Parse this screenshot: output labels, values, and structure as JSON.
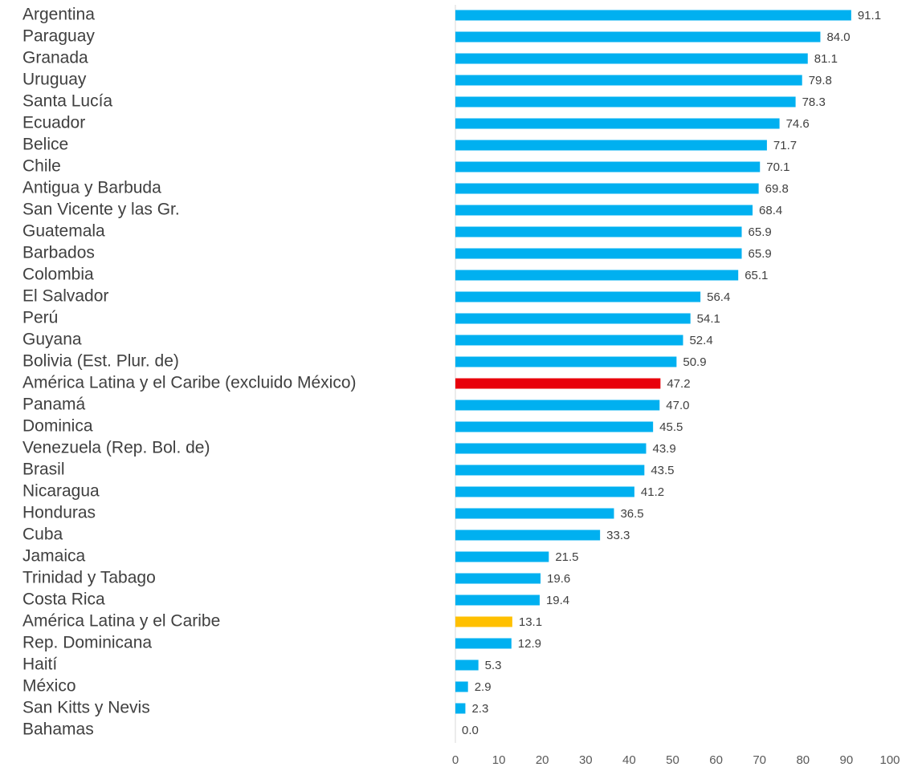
{
  "chart_data": {
    "type": "barh",
    "categories": [
      "Argentina",
      "Paraguay",
      "Granada",
      "Uruguay",
      "Santa Lucía",
      "Ecuador",
      "Belice",
      "Chile",
      "Antigua y Barbuda",
      "San Vicente y las Gr.",
      "Guatemala",
      "Barbados",
      "Colombia",
      "El Salvador",
      "Perú",
      "Guyana",
      "Bolivia (Est. Plur. de)",
      "América Latina y el Caribe (excluido México)",
      "Panamá",
      "Dominica",
      "Venezuela (Rep. Bol. de)",
      "Brasil",
      "Nicaragua",
      "Honduras",
      "Cuba",
      "Jamaica",
      "Trinidad y Tabago",
      "Costa Rica",
      "América Latina y el Caribe",
      "Rep. Dominicana",
      "Haití",
      "México",
      "San Kitts y Nevis",
      "Bahamas"
    ],
    "values": [
      91.1,
      84,
      81.1,
      79.8,
      78.3,
      74.6,
      71.7,
      70.1,
      69.8,
      68.4,
      65.9,
      65.9,
      65.1,
      56.4,
      54.1,
      52.4,
      50.9,
      47.2,
      47,
      45.5,
      43.9,
      43.5,
      41.2,
      36.5,
      33.3,
      21.5,
      19.6,
      19.4,
      13.1,
      12.9,
      5.3,
      2.9,
      2.3,
      0
    ],
    "value_labels": [
      "91.1",
      "84.0",
      "81.1",
      "79.8",
      "78.3",
      "74.6",
      "71.7",
      "70.1",
      "69.8",
      "68.4",
      "65.9",
      "65.9",
      "65.1",
      "56.4",
      "54.1",
      "52.4",
      "50.9",
      "47.2",
      "47.0",
      "45.5",
      "43.9",
      "43.5",
      "41.2",
      "36.5",
      "33.3",
      "21.5",
      "19.6",
      "19.4",
      "13.1",
      "12.9",
      "5.3",
      "2.9",
      "2.3",
      "0.0"
    ],
    "colors": [
      "#00b0f0",
      "#00b0f0",
      "#00b0f0",
      "#00b0f0",
      "#00b0f0",
      "#00b0f0",
      "#00b0f0",
      "#00b0f0",
      "#00b0f0",
      "#00b0f0",
      "#00b0f0",
      "#00b0f0",
      "#00b0f0",
      "#00b0f0",
      "#00b0f0",
      "#00b0f0",
      "#00b0f0",
      "#e8000b",
      "#00b0f0",
      "#00b0f0",
      "#00b0f0",
      "#00b0f0",
      "#00b0f0",
      "#00b0f0",
      "#00b0f0",
      "#00b0f0",
      "#00b0f0",
      "#00b0f0",
      "#ffc000",
      "#00b0f0",
      "#00b0f0",
      "#00b0f0",
      "#00b0f0",
      "#00b0f0"
    ],
    "xlim": [
      0,
      100
    ],
    "xticks": [
      0,
      10,
      20,
      30,
      40,
      50,
      60,
      70,
      80,
      90,
      100
    ]
  }
}
